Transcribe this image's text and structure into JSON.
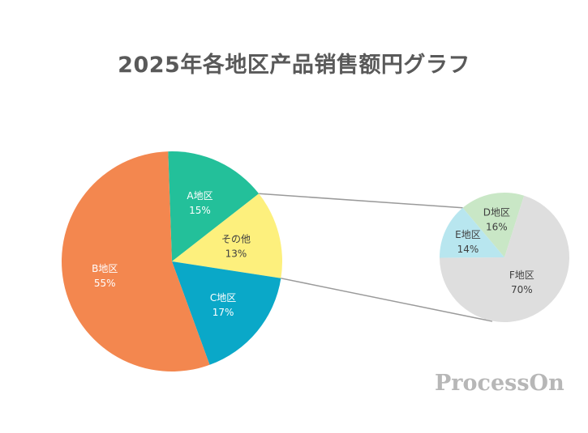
{
  "title": "2025年各地区产品销售额円グラフ",
  "watermark": "ProcessOn",
  "chart_data": {
    "type": "pie-of-pie",
    "title": "2025年各地区产品销售额円グラフ",
    "main": {
      "slices": [
        {
          "label": "A地区",
          "value": 15,
          "display": "15%",
          "color": "#23c09a"
        },
        {
          "label": "その他",
          "value": 13,
          "display": "13%",
          "color": "#fdf07d"
        },
        {
          "label": "C地区",
          "value": 17,
          "display": "17%",
          "color": "#0aa8c8"
        },
        {
          "label": "B地区",
          "value": 55,
          "display": "55%",
          "color": "#f3874f"
        }
      ]
    },
    "secondary": {
      "parent": "その他",
      "slices": [
        {
          "label": "D地区",
          "value": 16,
          "display": "16%",
          "color": "#c9e7c6"
        },
        {
          "label": "F地区",
          "value": 70,
          "display": "70%",
          "color": "#dedede"
        },
        {
          "label": "E地区",
          "value": 14,
          "display": "14%",
          "color": "#b8e6ef"
        }
      ]
    }
  }
}
